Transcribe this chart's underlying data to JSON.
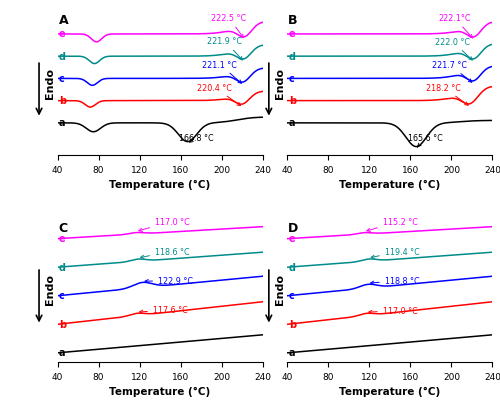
{
  "colors": {
    "a": "#000000",
    "b": "#ff0000",
    "c": "#0000ff",
    "d": "#008b8b",
    "e": "#ff00ff"
  },
  "offsets_AB": {
    "a": 0.0,
    "b": 0.45,
    "c": 0.9,
    "d": 1.35,
    "e": 1.8
  },
  "offsets_CD": {
    "a": 0.0,
    "b": 0.38,
    "c": 0.76,
    "d": 1.14,
    "e": 1.52
  },
  "panel_A_annots": [
    {
      "curve": "e",
      "temp": 222.5,
      "label": "222.5 °C"
    },
    {
      "curve": "d",
      "temp": 221.9,
      "label": "221.9 °C"
    },
    {
      "curve": "c",
      "temp": 221.1,
      "label": "221.1 °C"
    },
    {
      "curve": "b",
      "temp": 220.4,
      "label": "220.4 °C"
    },
    {
      "curve": "a",
      "temp": 166.8,
      "label": "166.8 °C"
    }
  ],
  "panel_B_annots": [
    {
      "curve": "e",
      "temp": 222.1,
      "label": "222.1°C"
    },
    {
      "curve": "d",
      "temp": 222.0,
      "label": "222.0 °C"
    },
    {
      "curve": "c",
      "temp": 221.7,
      "label": "221.7 °C"
    },
    {
      "curve": "b",
      "temp": 218.2,
      "label": "218.2 °C"
    },
    {
      "curve": "a",
      "temp": 165.6,
      "label": "165.6 °C"
    }
  ],
  "panel_C_annots": [
    {
      "curve": "e",
      "temp": 117.0,
      "label": "117.0 °C"
    },
    {
      "curve": "d",
      "temp": 118.6,
      "label": "118.6 °C"
    },
    {
      "curve": "c",
      "temp": 122.9,
      "label": "122.9 °C"
    },
    {
      "curve": "b",
      "temp": 117.6,
      "label": "117.6 °C"
    }
  ],
  "panel_D_annots": [
    {
      "curve": "e",
      "temp": 115.2,
      "label": "115.2 °C"
    },
    {
      "curve": "d",
      "temp": 119.4,
      "label": "119.4 °C"
    },
    {
      "curve": "c",
      "temp": 118.8,
      "label": "118.8 °C"
    },
    {
      "curve": "b",
      "temp": 117.0,
      "label": "117.0 °C"
    }
  ],
  "xlabel": "Temperature (°C)",
  "ylabel": "Endo",
  "xticks": [
    40,
    80,
    120,
    160,
    200,
    240
  ],
  "xlim": [
    40,
    240
  ]
}
